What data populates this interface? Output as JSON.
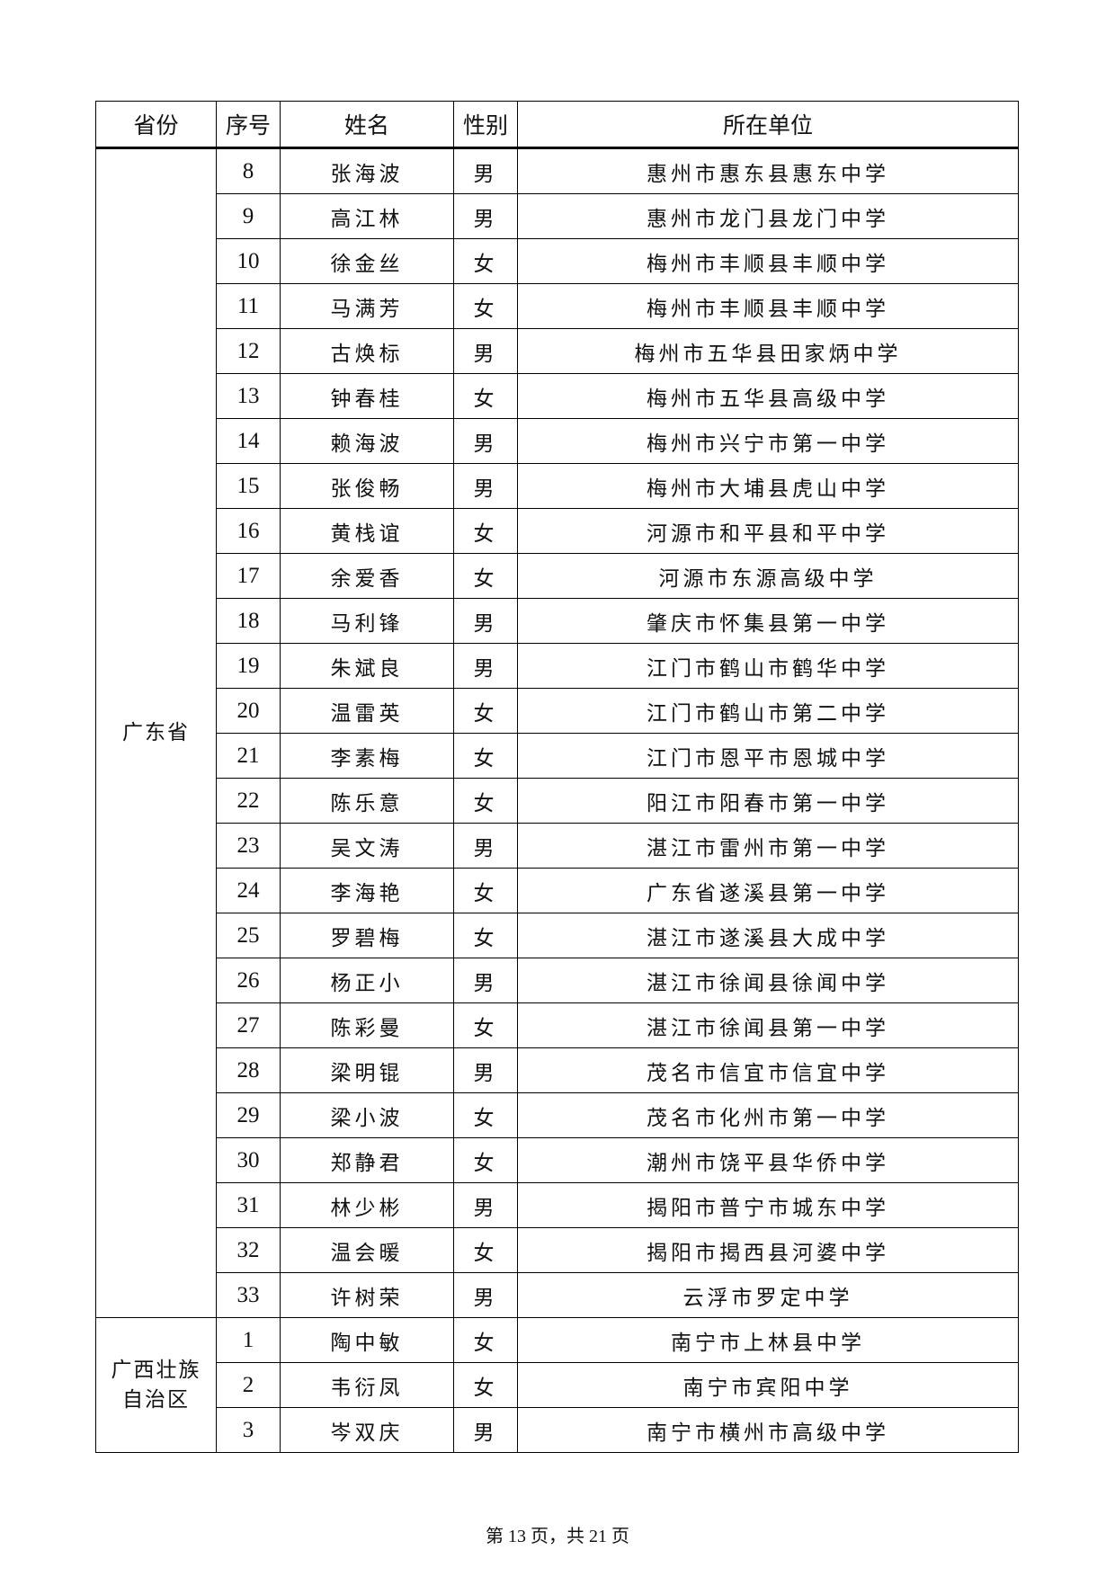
{
  "table": {
    "headers": [
      "省份",
      "序号",
      "姓名",
      "性别",
      "所在单位"
    ],
    "groups": [
      {
        "province": "广东省",
        "rows": [
          [
            "8",
            "张海波",
            "男",
            "惠州市惠东县惠东中学"
          ],
          [
            "9",
            "高江林",
            "男",
            "惠州市龙门县龙门中学"
          ],
          [
            "10",
            "徐金丝",
            "女",
            "梅州市丰顺县丰顺中学"
          ],
          [
            "11",
            "马满芳",
            "女",
            "梅州市丰顺县丰顺中学"
          ],
          [
            "12",
            "古焕标",
            "男",
            "梅州市五华县田家炳中学"
          ],
          [
            "13",
            "钟春桂",
            "女",
            "梅州市五华县高级中学"
          ],
          [
            "14",
            "赖海波",
            "男",
            "梅州市兴宁市第一中学"
          ],
          [
            "15",
            "张俊畅",
            "男",
            "梅州市大埔县虎山中学"
          ],
          [
            "16",
            "黄栈谊",
            "女",
            "河源市和平县和平中学"
          ],
          [
            "17",
            "余爱香",
            "女",
            "河源市东源高级中学"
          ],
          [
            "18",
            "马利锋",
            "男",
            "肇庆市怀集县第一中学"
          ],
          [
            "19",
            "朱斌良",
            "男",
            "江门市鹤山市鹤华中学"
          ],
          [
            "20",
            "温雷英",
            "女",
            "江门市鹤山市第二中学"
          ],
          [
            "21",
            "李素梅",
            "女",
            "江门市恩平市恩城中学"
          ],
          [
            "22",
            "陈乐意",
            "女",
            "阳江市阳春市第一中学"
          ],
          [
            "23",
            "吴文涛",
            "男",
            "湛江市雷州市第一中学"
          ],
          [
            "24",
            "李海艳",
            "女",
            "广东省遂溪县第一中学"
          ],
          [
            "25",
            "罗碧梅",
            "女",
            "湛江市遂溪县大成中学"
          ],
          [
            "26",
            "杨正小",
            "男",
            "湛江市徐闻县徐闻中学"
          ],
          [
            "27",
            "陈彩曼",
            "女",
            "湛江市徐闻县第一中学"
          ],
          [
            "28",
            "梁明锟",
            "男",
            "茂名市信宜市信宜中学"
          ],
          [
            "29",
            "梁小波",
            "女",
            "茂名市化州市第一中学"
          ],
          [
            "30",
            "郑静君",
            "女",
            "潮州市饶平县华侨中学"
          ],
          [
            "31",
            "林少彬",
            "男",
            "揭阳市普宁市城东中学"
          ],
          [
            "32",
            "温会暖",
            "女",
            "揭阳市揭西县河婆中学"
          ],
          [
            "33",
            "许树荣",
            "男",
            "云浮市罗定中学"
          ]
        ]
      },
      {
        "province": "广西壮族自治区",
        "rows": [
          [
            "1",
            "陶中敏",
            "女",
            "南宁市上林县中学"
          ],
          [
            "2",
            "韦衍凤",
            "女",
            "南宁市宾阳中学"
          ],
          [
            "3",
            "岑双庆",
            "男",
            "南宁市横州市高级中学"
          ]
        ]
      }
    ]
  },
  "footer": "第 13 页，共 21 页"
}
